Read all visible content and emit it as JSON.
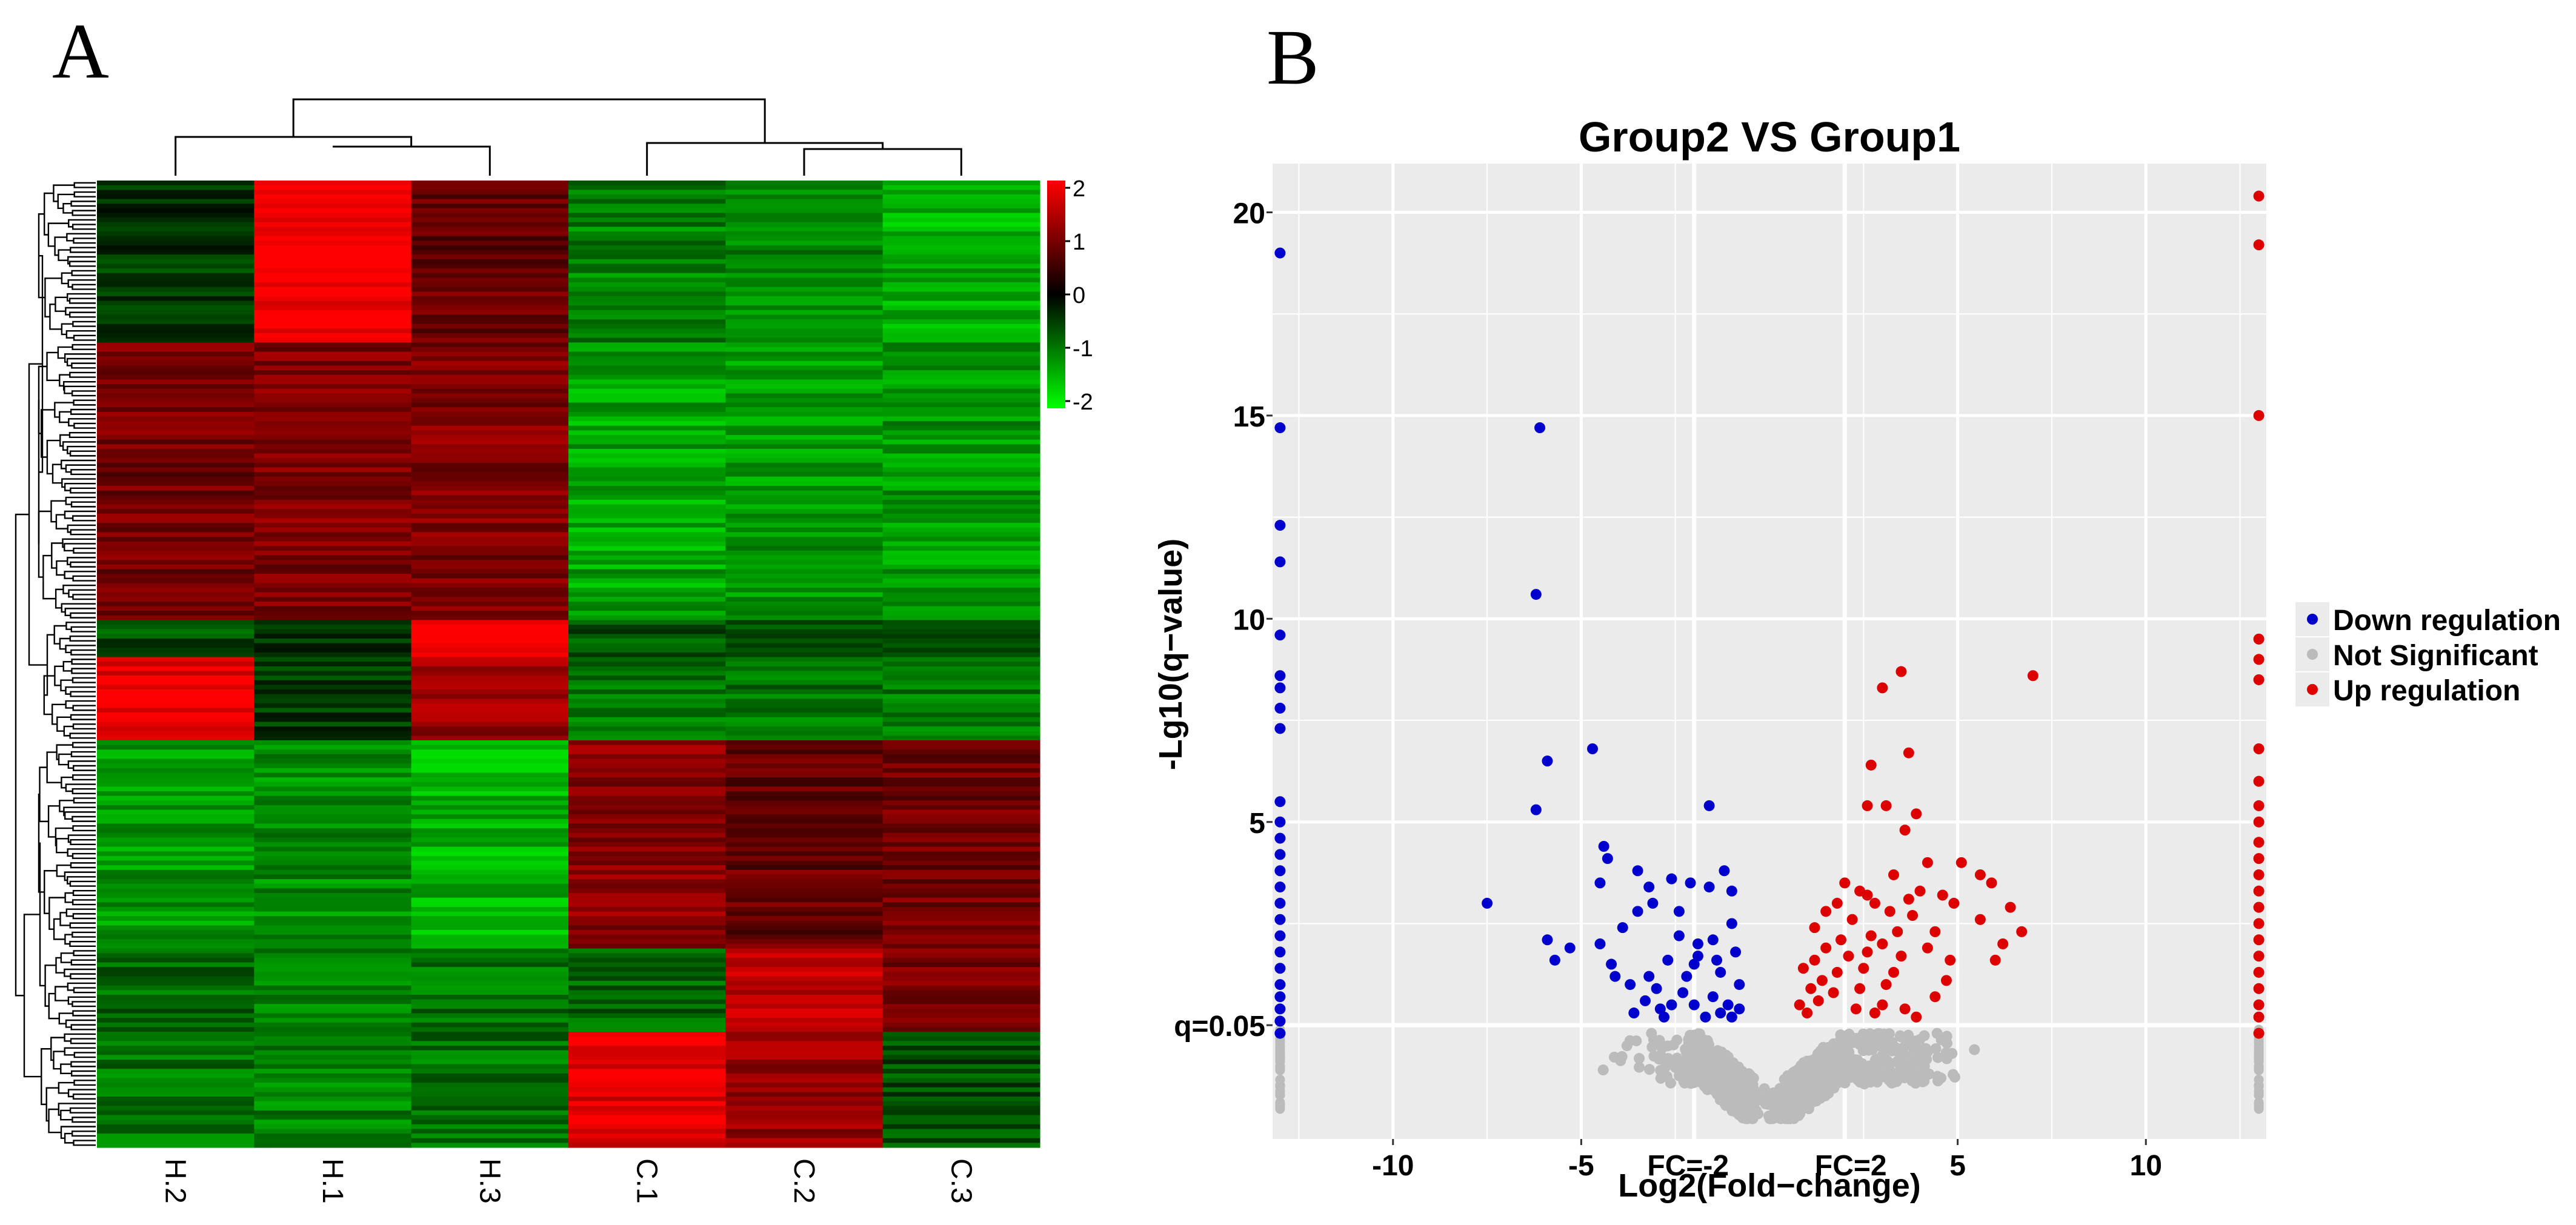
{
  "panel_labels": {
    "a": "A",
    "b": "B"
  },
  "chart_data": [
    {
      "type": "heatmap",
      "columns": [
        "H.2",
        "H.1",
        "H.3",
        "C.1",
        "C.2",
        "C.3"
      ],
      "colorbar": {
        "min": -2,
        "max": 2,
        "ticks": [
          "2",
          "1",
          "0",
          "-1",
          "-2"
        ],
        "low_color": "#00ff00",
        "mid_color": "#000000",
        "high_color": "#ff0000"
      },
      "row_blocks": [
        {
          "rows": 35,
          "values": [
            -0.4,
            2.0,
            0.8,
            -1.0,
            -1.1,
            -1.4
          ]
        },
        {
          "rows": 60,
          "values": [
            0.9,
            1.0,
            1.0,
            -1.3,
            -1.2,
            -1.2
          ]
        },
        {
          "rows": 8,
          "values": [
            -0.6,
            -0.3,
            2.0,
            -0.7,
            -0.8,
            -0.8
          ]
        },
        {
          "rows": 18,
          "values": [
            1.8,
            -0.4,
            1.2,
            -0.9,
            -0.9,
            -1.0
          ]
        },
        {
          "rows": 45,
          "values": [
            -1.2,
            -1.1,
            -1.4,
            1.1,
            0.8,
            0.9
          ]
        },
        {
          "rows": 18,
          "values": [
            -0.8,
            -1.1,
            -0.9,
            -0.8,
            1.5,
            1.0
          ]
        },
        {
          "rows": 25,
          "values": [
            -0.9,
            -1.0,
            -0.9,
            1.8,
            1.2,
            -0.6
          ]
        }
      ]
    },
    {
      "type": "scatter",
      "title": "Group2 VS Group1",
      "xlabel": "Log2(Fold−change)",
      "ylabel": "-Lg10(q−value)",
      "xlim": [
        -13.2,
        13.2
      ],
      "ylim": [
        -2.8,
        21.2
      ],
      "xticks": [
        -10,
        -5,
        5,
        10
      ],
      "xtick_labels": [
        "-10",
        "-5",
        "5",
        "10"
      ],
      "yticks": [
        5,
        10,
        15,
        20
      ],
      "ytick_labels": [
        "5",
        "10",
        "15",
        "20"
      ],
      "fc_lines": [
        -2,
        2
      ],
      "fc_labels": [
        "FC=-2",
        "FC=2"
      ],
      "q_line": 0,
      "q_label": "q=0.05",
      "legend": {
        "position": "right",
        "items": [
          {
            "label": "Down regulation",
            "color": "#0000cc"
          },
          {
            "label": "Not Significant",
            "color": "#bbbbbb"
          },
          {
            "label": "Up regulation",
            "color": "#dd0000"
          }
        ]
      },
      "series": [
        {
          "name": "Down regulation",
          "color": "#0000cc",
          "points": [
            [
              -6.1,
              14.7
            ],
            [
              -6.2,
              10.6
            ],
            [
              -7.5,
              3.0
            ],
            [
              -6.2,
              5.3
            ],
            [
              -5.9,
              6.5
            ],
            [
              -4.7,
              6.8
            ],
            [
              -4.4,
              4.4
            ],
            [
              -4.3,
              4.1
            ],
            [
              -4.5,
              3.5
            ],
            [
              -5.9,
              2.1
            ],
            [
              -5.7,
              1.6
            ],
            [
              -5.3,
              1.9
            ],
            [
              -4.5,
              2.0
            ],
            [
              -4.2,
              1.5
            ],
            [
              -3.9,
              2.4
            ],
            [
              -3.5,
              2.8
            ],
            [
              -3.2,
              1.2
            ],
            [
              -3.3,
              0.6
            ],
            [
              -3.0,
              0.9
            ],
            [
              -2.9,
              0.4
            ],
            [
              -2.7,
              1.6
            ],
            [
              -2.4,
              2.2
            ],
            [
              -2.2,
              1.2
            ],
            [
              -2.0,
              0.5
            ],
            [
              -1.9,
              2.0
            ],
            [
              -2.1,
              3.5
            ],
            [
              -3.5,
              3.8
            ],
            [
              -3.2,
              3.4
            ],
            [
              -2.6,
              3.6
            ],
            [
              -2.4,
              2.8
            ],
            [
              -1.9,
              1.7
            ],
            [
              -1.6,
              3.4
            ],
            [
              -1.5,
              2.1
            ],
            [
              -1.3,
              1.3
            ],
            [
              -1.2,
              3.8
            ],
            [
              -1.5,
              0.7
            ],
            [
              -1.3,
              0.3
            ],
            [
              -1.1,
              0.5
            ],
            [
              -1.0,
              0.2
            ],
            [
              -1.0,
              2.5
            ],
            [
              -0.9,
              1.8
            ],
            [
              -0.8,
              1.0
            ],
            [
              -0.8,
              0.4
            ],
            [
              -1.6,
              5.4
            ],
            [
              -2.3,
              0.8
            ],
            [
              -3.7,
              1.0
            ],
            [
              -2.8,
              0.2
            ],
            [
              -3.6,
              0.3
            ],
            [
              -4.1,
              1.2
            ],
            [
              -3.1,
              3.0
            ],
            [
              -2.0,
              1.5
            ],
            [
              -1.7,
              0.2
            ],
            [
              -1.0,
              3.3
            ],
            [
              -2.6,
              0.5
            ],
            [
              -1.4,
              1.6
            ],
            [
              -13,
              19.0
            ],
            [
              -13,
              14.7
            ],
            [
              -13,
              12.3
            ],
            [
              -13,
              11.4
            ],
            [
              -13,
              9.6
            ],
            [
              -13,
              8.6
            ],
            [
              -13,
              8.3
            ],
            [
              -13,
              7.8
            ],
            [
              -13,
              7.3
            ],
            [
              -13,
              5.5
            ],
            [
              -13,
              5.0
            ],
            [
              -13,
              4.6
            ],
            [
              -13,
              4.2
            ],
            [
              -13,
              3.8
            ],
            [
              -13,
              3.4
            ],
            [
              -13,
              3.0
            ],
            [
              -13,
              2.6
            ],
            [
              -13,
              2.2
            ],
            [
              -13,
              1.8
            ],
            [
              -13,
              1.4
            ],
            [
              -13,
              1.0
            ],
            [
              -13,
              0.7
            ],
            [
              -13,
              0.4
            ],
            [
              -13,
              0.1
            ],
            [
              -13,
              -0.2
            ]
          ]
        },
        {
          "name": "Up regulation",
          "color": "#dd0000",
          "points": [
            [
              7.0,
              8.6
            ],
            [
              3.5,
              8.7
            ],
            [
              3.0,
              8.3
            ],
            [
              3.7,
              6.7
            ],
            [
              2.7,
              6.4
            ],
            [
              2.6,
              5.4
            ],
            [
              3.1,
              5.4
            ],
            [
              3.9,
              5.2
            ],
            [
              3.6,
              4.8
            ],
            [
              4.2,
              4.0
            ],
            [
              5.1,
              4.0
            ],
            [
              5.6,
              3.7
            ],
            [
              5.9,
              3.5
            ],
            [
              6.4,
              2.9
            ],
            [
              6.7,
              2.3
            ],
            [
              6.2,
              2.0
            ],
            [
              6.0,
              1.6
            ],
            [
              5.6,
              2.6
            ],
            [
              4.9,
              3.0
            ],
            [
              4.6,
              3.2
            ],
            [
              4.4,
              2.3
            ],
            [
              4.8,
              1.6
            ],
            [
              4.7,
              1.1
            ],
            [
              4.4,
              0.7
            ],
            [
              4.0,
              3.3
            ],
            [
              3.7,
              3.1
            ],
            [
              3.8,
              2.7
            ],
            [
              3.4,
              2.3
            ],
            [
              3.5,
              1.7
            ],
            [
              3.3,
              1.3
            ],
            [
              3.1,
              1.0
            ],
            [
              3.0,
              0.5
            ],
            [
              3.2,
              2.8
            ],
            [
              3.0,
              2.0
            ],
            [
              2.8,
              3.0
            ],
            [
              2.7,
              2.2
            ],
            [
              2.6,
              1.8
            ],
            [
              2.5,
              1.4
            ],
            [
              2.4,
              0.9
            ],
            [
              2.3,
              0.4
            ],
            [
              2.2,
              2.6
            ],
            [
              2.0,
              3.5
            ],
            [
              1.9,
              2.1
            ],
            [
              1.8,
              1.3
            ],
            [
              1.7,
              0.8
            ],
            [
              1.5,
              2.8
            ],
            [
              1.5,
              1.9
            ],
            [
              1.4,
              1.1
            ],
            [
              1.3,
              0.6
            ],
            [
              1.2,
              2.4
            ],
            [
              1.2,
              1.6
            ],
            [
              1.1,
              0.9
            ],
            [
              1.0,
              0.3
            ],
            [
              0.9,
              1.4
            ],
            [
              0.8,
              0.5
            ],
            [
              2.6,
              3.2
            ],
            [
              3.9,
              0.2
            ],
            [
              2.8,
              0.3
            ],
            [
              3.6,
              0.4
            ],
            [
              2.1,
              1.7
            ],
            [
              1.8,
              3.0
            ],
            [
              2.4,
              3.3
            ],
            [
              4.2,
              1.9
            ],
            [
              3.3,
              3.7
            ],
            [
              13,
              20.4
            ],
            [
              13,
              19.2
            ],
            [
              13,
              15.0
            ],
            [
              13,
              9.5
            ],
            [
              13,
              9.0
            ],
            [
              13,
              8.5
            ],
            [
              13,
              6.8
            ],
            [
              13,
              6.0
            ],
            [
              13,
              5.4
            ],
            [
              13,
              5.0
            ],
            [
              13,
              4.5
            ],
            [
              13,
              4.1
            ],
            [
              13,
              3.7
            ],
            [
              13,
              3.3
            ],
            [
              13,
              2.9
            ],
            [
              13,
              2.5
            ],
            [
              13,
              2.1
            ],
            [
              13,
              1.7
            ],
            [
              13,
              1.3
            ],
            [
              13,
              0.9
            ],
            [
              13,
              0.5
            ],
            [
              13,
              0.2
            ],
            [
              13,
              -0.2
            ]
          ]
        },
        {
          "name": "Not Significant",
          "color": "#bbbbbb",
          "generated": "dense band of non-significant genes below q=0.05 spanning Log2FC -5 to 6 with a V-shaped gap near 0; plus a grey column at x=±13",
          "count": 900
        }
      ]
    }
  ]
}
